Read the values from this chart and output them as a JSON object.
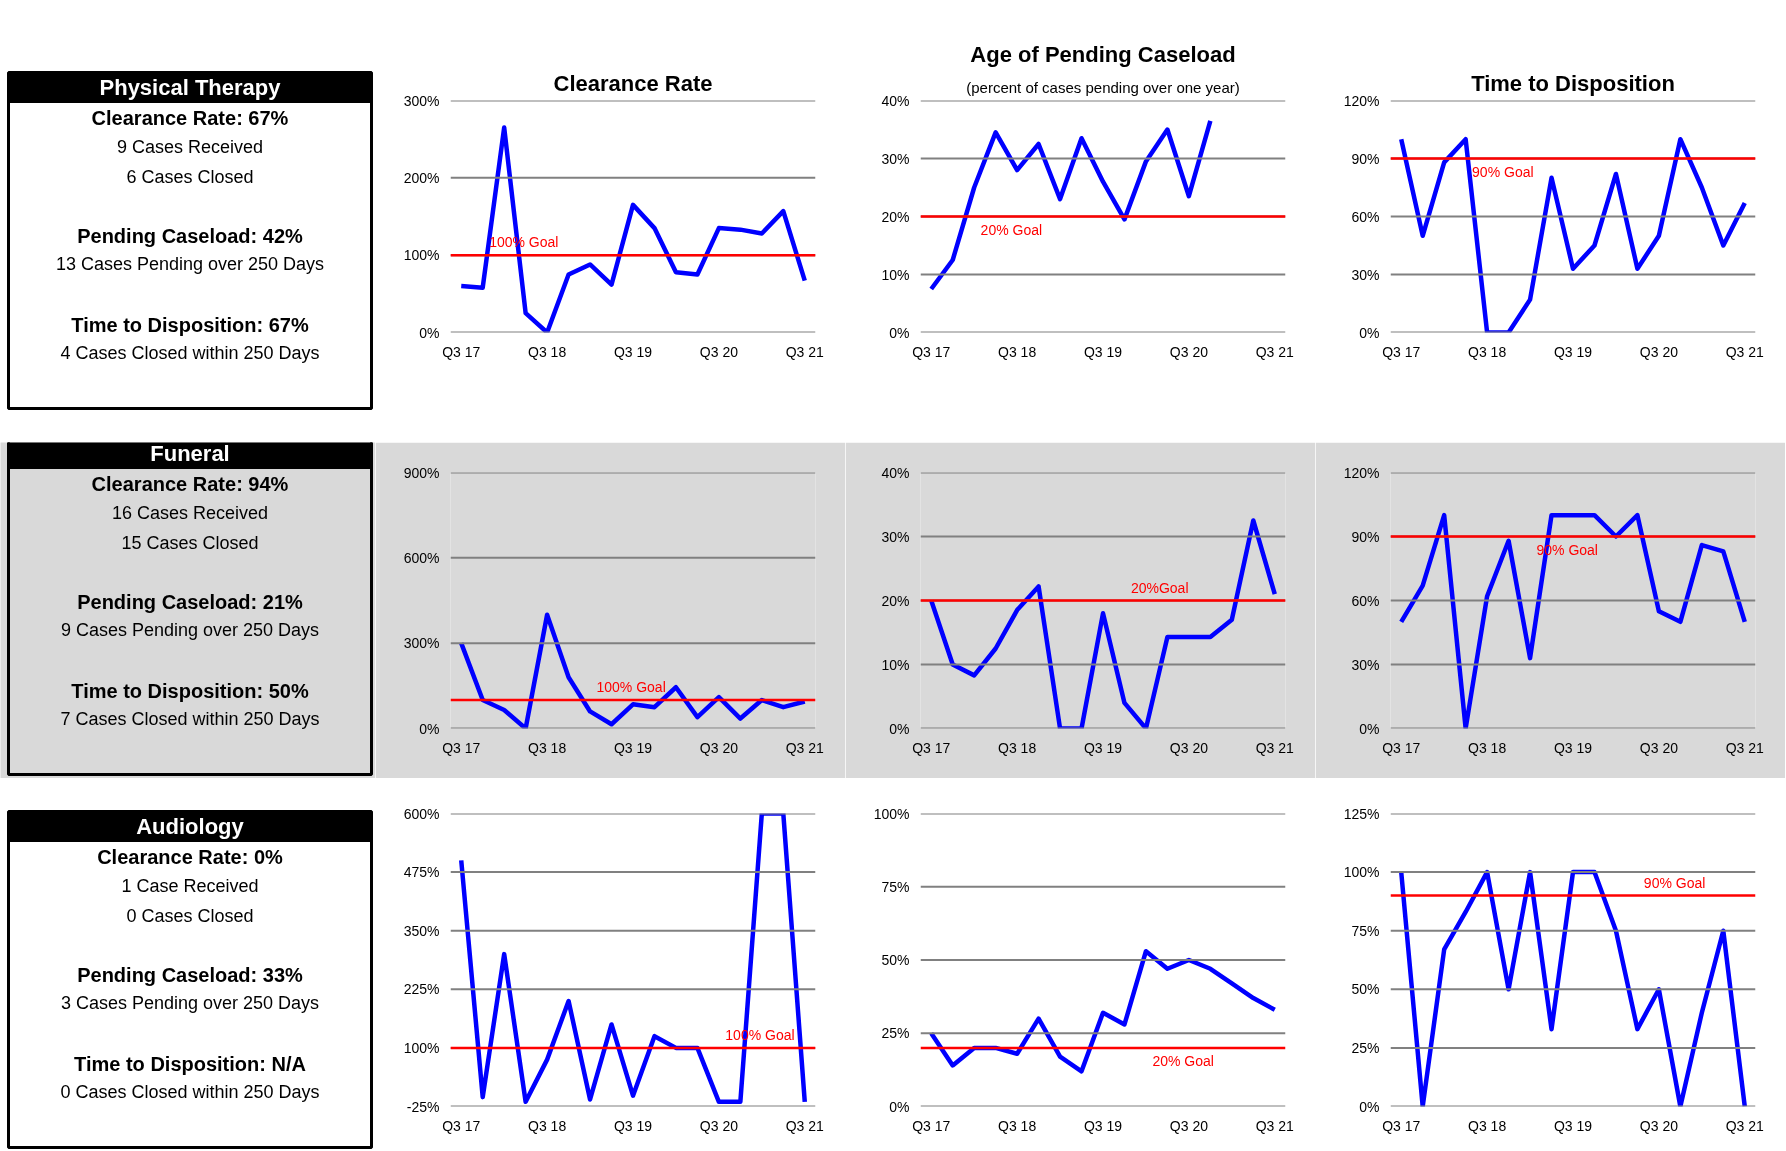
{
  "chart_data": [
    {
      "type": "other",
      "title": "Physical Therapy",
      "annotations": [
        "Clearance Rate: 67%",
        "9 Cases Received",
        "6 Cases Closed",
        "Pending Caseload: 42%",
        "13 Cases Pending over 250 Days",
        "Time to Disposition: 67%",
        "4 Cases Closed within 250 Days"
      ]
    },
    {
      "type": "line",
      "title": "Clearance Rate",
      "categories": [
        "Q3 17",
        null,
        null,
        null,
        "Q3 18",
        null,
        null,
        null,
        "Q3 19",
        null,
        null,
        null,
        "Q3 20",
        null,
        null,
        null,
        "Q3 21"
      ],
      "series": [
        {
          "color": "#0000ff",
          "values": [
            60,
            58,
            265,
            25,
            0,
            75,
            88,
            62,
            165,
            135,
            78,
            75,
            135,
            133,
            128,
            157,
            67
          ]
        }
      ],
      "ylim": [
        0,
        300
      ],
      "yticks": [
        {
          "value": 0,
          "label": "0%"
        },
        {
          "value": 100,
          "label": "100%"
        },
        {
          "value": 200,
          "label": "200%"
        },
        {
          "value": 300,
          "label": "300%"
        }
      ],
      "grid": "y",
      "ref_lines": [
        {
          "axis": "y",
          "value": 100,
          "label": "100% Goal",
          "color": "#ff0000"
        }
      ]
    },
    {
      "type": "line",
      "title": "Age of Pending Caseload",
      "subtitle": "(percent of cases pending over one year)",
      "categories": [
        "Q3 17",
        null,
        null,
        null,
        "Q3 18",
        null,
        null,
        null,
        "Q3 19",
        null,
        null,
        null,
        "Q3 20",
        null,
        null,
        null,
        "Q3 21"
      ],
      "series": [
        {
          "color": "#0000ff",
          "values": [
            7.5,
            12.5,
            25,
            34.5,
            28,
            32.5,
            23,
            33.5,
            26,
            19.5,
            29.5,
            35,
            23.5,
            36.5,
            null,
            null,
            null
          ]
        }
      ],
      "ylim": [
        0,
        40
      ],
      "yticks": [
        {
          "value": 0,
          "label": "0%"
        },
        {
          "value": 10,
          "label": "10%"
        },
        {
          "value": 20,
          "label": "20%"
        },
        {
          "value": 30,
          "label": "30%"
        },
        {
          "value": 40,
          "label": "40%"
        }
      ],
      "grid": "y",
      "ref_lines": [
        {
          "axis": "y",
          "value": 20,
          "label": "20% Goal",
          "color": "#ff0000"
        }
      ]
    },
    {
      "type": "line",
      "title": "Time to Disposition",
      "categories": [
        "Q3 17",
        null,
        null,
        null,
        "Q3 18",
        null,
        null,
        null,
        "Q3 19",
        null,
        null,
        null,
        "Q3 20",
        null,
        null,
        null,
        "Q3 21"
      ],
      "series": [
        {
          "color": "#0000ff",
          "values": [
            100,
            50,
            88,
            100,
            0,
            0,
            17,
            80,
            33,
            45,
            82,
            33,
            50,
            100,
            75,
            45,
            67
          ]
        }
      ],
      "ylim": [
        0,
        120
      ],
      "yticks": [
        {
          "value": 0,
          "label": "0%"
        },
        {
          "value": 30,
          "label": "30%"
        },
        {
          "value": 60,
          "label": "60%"
        },
        {
          "value": 90,
          "label": "90%"
        },
        {
          "value": 120,
          "label": "120%"
        }
      ],
      "grid": "y",
      "ref_lines": [
        {
          "axis": "y",
          "value": 90,
          "label": "90% Goal",
          "color": "#ff0000"
        }
      ]
    },
    {
      "type": "other",
      "title": "Funeral",
      "annotations": [
        "Clearance Rate: 94%",
        "16 Cases Received",
        "15 Cases Closed",
        "Pending Caseload: 21%",
        "9 Cases Pending over 250 Days",
        "Time to Disposition: 50%",
        "7 Cases Closed within 250 Days"
      ]
    },
    {
      "type": "line",
      "categories": [
        "Q3 17",
        null,
        null,
        null,
        "Q3 18",
        null,
        null,
        null,
        "Q3 19",
        null,
        null,
        null,
        "Q3 20",
        null,
        null,
        null,
        "Q3 21"
      ],
      "series": [
        {
          "color": "#0000ff",
          "values": [
            300,
            100,
            65,
            0,
            400,
            180,
            60,
            15,
            85,
            75,
            145,
            40,
            110,
            35,
            100,
            75,
            95
          ]
        }
      ],
      "ylim": [
        0,
        900
      ],
      "yticks": [
        {
          "value": 0,
          "label": "0%"
        },
        {
          "value": 300,
          "label": "300%"
        },
        {
          "value": 600,
          "label": "600%"
        },
        {
          "value": 900,
          "label": "900%"
        }
      ],
      "grid": "y",
      "ref_lines": [
        {
          "axis": "y",
          "value": 100,
          "label": "100%  Goal",
          "color": "#ff0000"
        }
      ]
    },
    {
      "type": "line",
      "categories": [
        "Q3 17",
        null,
        null,
        null,
        "Q3 18",
        null,
        null,
        null,
        "Q3 19",
        null,
        null,
        null,
        "Q3 20",
        null,
        null,
        null,
        "Q3 21"
      ],
      "series": [
        {
          "color": "#0000ff",
          "values": [
            20,
            10,
            8.3,
            12.5,
            18.5,
            22.2,
            0,
            0,
            18,
            4,
            0,
            14.3,
            14.3,
            14.3,
            17,
            32.5,
            21
          ]
        }
      ],
      "ylim": [
        0,
        40
      ],
      "yticks": [
        {
          "value": 0,
          "label": "0%"
        },
        {
          "value": 10,
          "label": "10%"
        },
        {
          "value": 20,
          "label": "20%"
        },
        {
          "value": 30,
          "label": "30%"
        },
        {
          "value": 40,
          "label": "40%"
        }
      ],
      "grid": "y",
      "ref_lines": [
        {
          "axis": "y",
          "value": 20,
          "label": "20%Goal",
          "color": "#ff0000"
        }
      ]
    },
    {
      "type": "line",
      "categories": [
        "Q3 17",
        null,
        null,
        null,
        "Q3 18",
        null,
        null,
        null,
        "Q3 19",
        null,
        null,
        null,
        "Q3 20",
        null,
        null,
        null,
        "Q3 21"
      ],
      "series": [
        {
          "color": "#0000ff",
          "values": [
            50,
            67,
            100,
            0,
            62,
            88,
            33,
            100,
            100,
            100,
            90,
            100,
            55,
            50,
            86,
            83,
            50
          ]
        }
      ],
      "ylim": [
        0,
        120
      ],
      "yticks": [
        {
          "value": 0,
          "label": "0%"
        },
        {
          "value": 30,
          "label": "30%"
        },
        {
          "value": 60,
          "label": "60%"
        },
        {
          "value": 90,
          "label": "90%"
        },
        {
          "value": 120,
          "label": "120%"
        }
      ],
      "grid": "y",
      "ref_lines": [
        {
          "axis": "y",
          "value": 90,
          "label": "90% Goal",
          "color": "#ff0000"
        }
      ]
    },
    {
      "type": "other",
      "title": "Audiology",
      "annotations": [
        "Clearance Rate: 0%",
        "1 Case Received",
        "0 Cases Closed",
        "Pending Caseload: 33%",
        "3 Cases Pending over 250 Days",
        "Time to Disposition: N/A",
        "0 Cases Closed within 250 Days"
      ]
    },
    {
      "type": "line",
      "categories": [
        "Q3 17",
        null,
        null,
        null,
        "Q3 18",
        null,
        null,
        null,
        "Q3 19",
        null,
        null,
        null,
        "Q3 20",
        null,
        null,
        null,
        "Q3 21"
      ],
      "series": [
        {
          "color": "#0000ff",
          "values": [
            500,
            -5,
            300,
            -15,
            75,
            200,
            -10,
            150,
            -2,
            125,
            100,
            100,
            -15,
            -15,
            600,
            600,
            -15
          ]
        }
      ],
      "ylim": [
        -25,
        600
      ],
      "yticks": [
        {
          "value": -25,
          "label": "-25%"
        },
        {
          "value": 100,
          "label": "100%"
        },
        {
          "value": 225,
          "label": "225%"
        },
        {
          "value": 350,
          "label": "350%"
        },
        {
          "value": 475,
          "label": "475%"
        },
        {
          "value": 600,
          "label": "600%"
        }
      ],
      "grid": "y",
      "ref_lines": [
        {
          "axis": "y",
          "value": 100,
          "label": "100% Goal",
          "color": "#ff0000"
        }
      ]
    },
    {
      "type": "line",
      "categories": [
        "Q3 17",
        null,
        null,
        null,
        "Q3 18",
        null,
        null,
        null,
        "Q3 19",
        null,
        null,
        null,
        "Q3 20",
        null,
        null,
        null,
        "Q3 21"
      ],
      "series": [
        {
          "color": "#0000ff",
          "values": [
            25,
            14,
            20,
            20,
            18,
            30,
            17,
            12,
            32,
            28,
            53,
            47,
            50,
            47,
            42,
            37,
            33
          ]
        }
      ],
      "ylim": [
        0,
        100
      ],
      "yticks": [
        {
          "value": 0,
          "label": "0%"
        },
        {
          "value": 25,
          "label": "25%"
        },
        {
          "value": 50,
          "label": "50%"
        },
        {
          "value": 75,
          "label": "75%"
        },
        {
          "value": 100,
          "label": "100%"
        }
      ],
      "grid": "y",
      "ref_lines": [
        {
          "axis": "y",
          "value": 20,
          "label": "20% Goal",
          "color": "#ff0000"
        }
      ]
    },
    {
      "type": "line",
      "categories": [
        "Q3 17",
        null,
        null,
        null,
        "Q3 18",
        null,
        null,
        null,
        "Q3 19",
        null,
        null,
        null,
        "Q3 20",
        null,
        null,
        null,
        "Q3 21"
      ],
      "series": [
        {
          "color": "#0000ff",
          "values": [
            100,
            0,
            67,
            83,
            100,
            50,
            100,
            33,
            100,
            100,
            75,
            33,
            50,
            0,
            40,
            75,
            0
          ]
        }
      ],
      "ylim": [
        0,
        125
      ],
      "yticks": [
        {
          "value": 0,
          "label": "0%"
        },
        {
          "value": 25,
          "label": "25%"
        },
        {
          "value": 50,
          "label": "50%"
        },
        {
          "value": 75,
          "label": "75%"
        },
        {
          "value": 100,
          "label": "100%"
        },
        {
          "value": 125,
          "label": "125%"
        }
      ],
      "grid": "y",
      "ref_lines": [
        {
          "axis": "y",
          "value": 90,
          "label": "90% Goal",
          "color": "#ff0000"
        }
      ]
    }
  ]
}
